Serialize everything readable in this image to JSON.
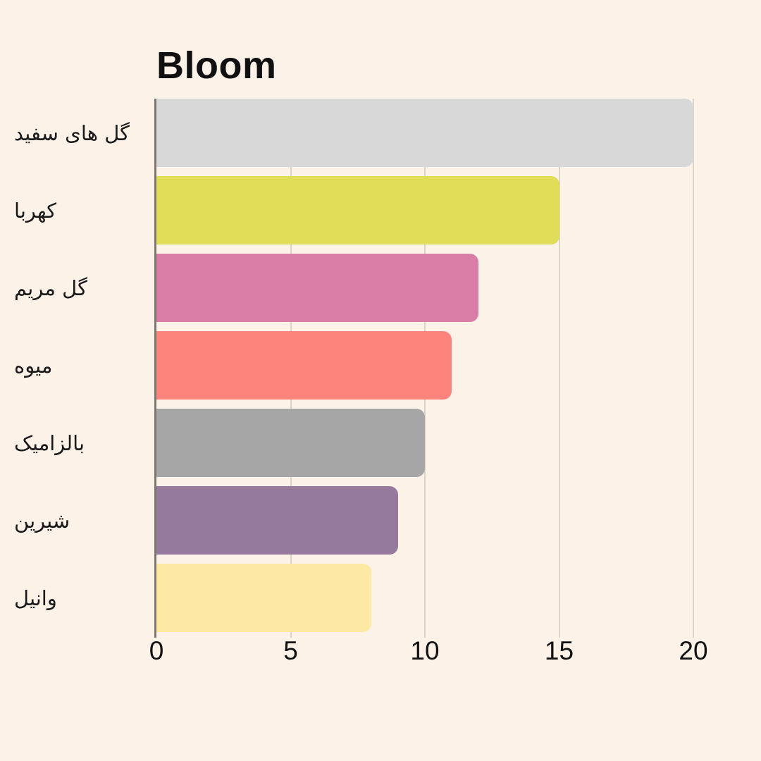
{
  "page": {
    "background_color": "#fdf2e8",
    "text_color": "#111111"
  },
  "chart_data": {
    "type": "bar",
    "orientation": "horizontal",
    "title": "Bloom",
    "categories": [
      "گل های سفید",
      "کهربا",
      "گل مریم",
      "میوه",
      "بالزامیک",
      "شیرین",
      "وانیل"
    ],
    "values": [
      20,
      15,
      12,
      11,
      10,
      9,
      8
    ],
    "bar_colors": [
      "#d8d8d8",
      "#e0dd58",
      "#d87ea7",
      "#fd847d",
      "#a6a6a6",
      "#967a9e",
      "#fde9a4"
    ],
    "xlabel": "",
    "ylabel": "",
    "xlim": [
      0,
      20
    ],
    "x_ticks": [
      0,
      5,
      10,
      15,
      20
    ],
    "grid": true,
    "gridline_color": "#ddd4c8",
    "axis_color": "#7d786f",
    "legend": false
  }
}
